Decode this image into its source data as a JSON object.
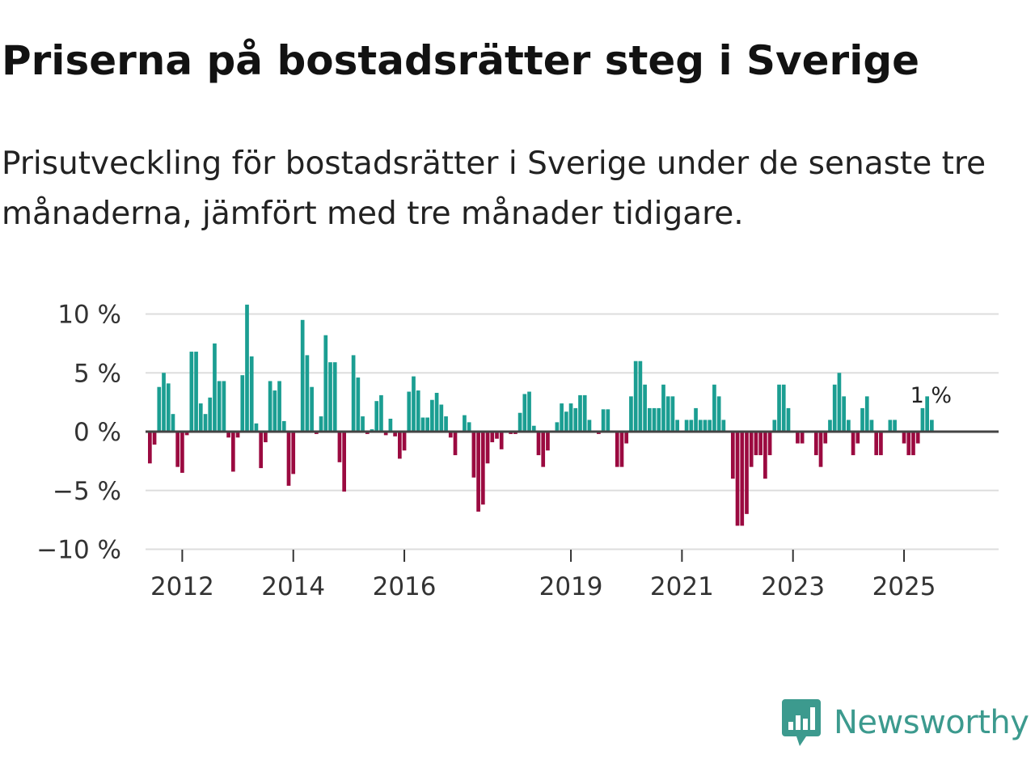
{
  "title": "Priserna på bostadsrätter steg i Sverige",
  "subtitle": "Prisutveckling för bostadsrätter i Sverige under de senaste tre månaderna, jämfört med tre månader tidigare.",
  "brand": {
    "name": "Newsworthy",
    "color": "#3c9a8e",
    "icon": "newsworthy-logo-icon"
  },
  "chart_data": {
    "type": "bar",
    "x_start": "2011-06",
    "y_tick_values": [
      10,
      5,
      0,
      -5,
      -10
    ],
    "y_tick_labels": [
      "10 %",
      "5 %",
      "0 %",
      "−5 %",
      "−10 %"
    ],
    "ylim": [
      -10,
      10
    ],
    "x_tick_indices": [
      7,
      31,
      55,
      91,
      115,
      139,
      163
    ],
    "x_tick_labels": [
      "2012",
      "2014",
      "2016",
      "2019",
      "2021",
      "2023",
      "2025"
    ],
    "last_value_label": "1 %",
    "colors": {
      "positive": "#1b9e92",
      "negative": "#9b0a40",
      "grid": "#dddddd",
      "zero": "#444444"
    },
    "values": [
      -2.7,
      -1.1,
      3.8,
      5.0,
      4.1,
      1.5,
      -3.0,
      -3.5,
      -0.3,
      6.8,
      6.8,
      2.4,
      1.5,
      2.9,
      7.5,
      4.3,
      4.3,
      -0.5,
      -3.4,
      -0.5,
      4.8,
      10.8,
      6.4,
      0.7,
      -3.1,
      -0.9,
      4.3,
      3.5,
      4.3,
      0.9,
      -4.6,
      -3.6,
      0,
      9.5,
      6.5,
      3.8,
      -0.2,
      1.3,
      8.2,
      5.9,
      5.9,
      -2.6,
      -5.1,
      0,
      6.5,
      4.6,
      1.3,
      -0.2,
      0.2,
      2.6,
      3.1,
      -0.3,
      1.1,
      -0.4,
      -2.3,
      -1.6,
      3.4,
      4.7,
      3.5,
      1.2,
      1.2,
      2.7,
      3.3,
      2.3,
      1.3,
      -0.5,
      -2.0,
      0,
      1.4,
      0.8,
      -3.9,
      -6.8,
      -6.2,
      -2.7,
      -0.9,
      -0.6,
      -1.5,
      0,
      -0.2,
      -0.2,
      1.6,
      3.2,
      3.4,
      0.5,
      -2.0,
      -3.0,
      -1.6,
      0,
      0.8,
      2.4,
      1.7,
      2.4,
      2.0,
      3.1,
      3.1,
      1.0,
      0,
      -0.2,
      1.9,
      1.9,
      0,
      -3.0,
      -3.0,
      -1.0,
      3.0,
      6.0,
      6.0,
      4.0,
      2.0,
      2.0,
      2.0,
      4.0,
      3.0,
      3.0,
      1.0,
      0,
      1.0,
      1.0,
      2.0,
      1.0,
      1.0,
      1.0,
      4.0,
      3.0,
      1.0,
      0,
      -4.0,
      -8.0,
      -8.0,
      -7.0,
      -3.0,
      -2.0,
      -2.0,
      -4.0,
      -2.0,
      1.0,
      4.0,
      4.0,
      2.0,
      0,
      -1.0,
      -1.0,
      0,
      0,
      -2.0,
      -3.0,
      -1.0,
      1.0,
      4.0,
      5.0,
      3.0,
      1.0,
      -2.0,
      -1.0,
      2.0,
      3.0,
      1.0,
      -2.0,
      -2.0,
      0,
      1.0,
      1.0,
      0,
      -1.0,
      -2.0,
      -2.0,
      -1.0,
      2.0,
      3.0,
      1.0
    ]
  }
}
